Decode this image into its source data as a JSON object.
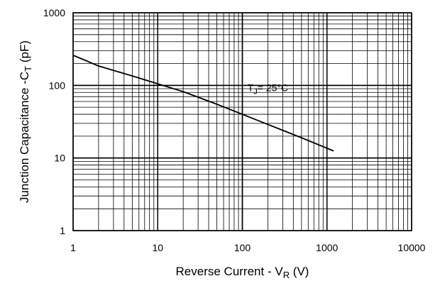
{
  "chart_data": {
    "type": "line",
    "title": "",
    "xlabel": {
      "main": "Reverse Current - V",
      "sub": "R",
      "unit": " (V)"
    },
    "ylabel": {
      "main": "Junction Capacitance -C",
      "sub": "T",
      "unit": " (pF)"
    },
    "x_scale": "log",
    "y_scale": "log",
    "xlim": [
      1,
      10000
    ],
    "ylim": [
      1,
      1000
    ],
    "x_ticks": [
      "1",
      "10",
      "100",
      "1000",
      "10000"
    ],
    "y_ticks": [
      "1",
      "10",
      "100",
      "1000"
    ],
    "grid": true,
    "series": [
      {
        "x": [
          1,
          2,
          5,
          10,
          20,
          50,
          100,
          200,
          500,
          1200
        ],
        "y": [
          260,
          185,
          135,
          105,
          82,
          55,
          40,
          29,
          19,
          12.5
        ]
      }
    ],
    "annotation": {
      "main": "T",
      "sub": "J",
      "rest": "= 25°C",
      "x": 115,
      "y": 93
    }
  }
}
